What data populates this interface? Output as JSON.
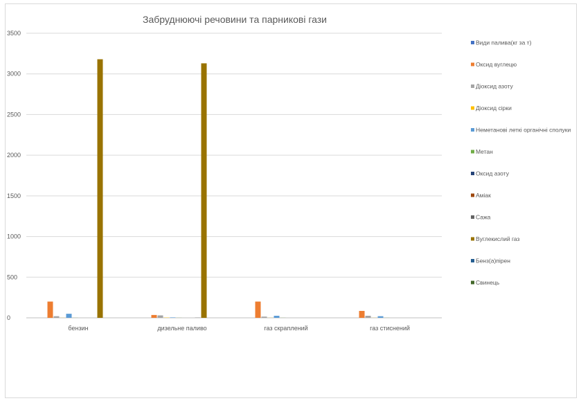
{
  "chart_data": {
    "type": "bar",
    "title": "Забруднюючі речовини та парникові гази",
    "xlabel": "",
    "ylabel": "",
    "ylim": [
      0,
      3500
    ],
    "yticks": [
      0,
      500,
      1000,
      1500,
      2000,
      2500,
      3000,
      3500
    ],
    "grid": true,
    "legend_position": "right",
    "categories": [
      "бензин",
      "дизельне паливо",
      "газ скраплений",
      "газ стиснений"
    ],
    "series": [
      {
        "name": "Види палива(кг за т)",
        "color": "#4472c4",
        "values": [
          0,
          0,
          0,
          0
        ]
      },
      {
        "name": "Оксид вуглецю",
        "color": "#ed7d31",
        "values": [
          200,
          35,
          200,
          85
        ]
      },
      {
        "name": "Діоксид азоту",
        "color": "#a5a5a5",
        "values": [
          20,
          30,
          15,
          25
        ]
      },
      {
        "name": "Діоксид сірки",
        "color": "#ffc000",
        "values": [
          1,
          3,
          1,
          1
        ]
      },
      {
        "name": "Неметанові леткі органічні сполуки",
        "color": "#5b9bd5",
        "values": [
          50,
          5,
          25,
          20
        ]
      },
      {
        "name": "Метан",
        "color": "#70ad47",
        "values": [
          1,
          1,
          1,
          1
        ]
      },
      {
        "name": "Оксид азоту",
        "color": "#264478",
        "values": [
          0,
          0,
          0,
          0
        ]
      },
      {
        "name": "Аміак",
        "color": "#9e480e",
        "values": [
          0,
          0,
          0,
          0
        ]
      },
      {
        "name": "Сажа",
        "color": "#636363",
        "values": [
          0,
          2,
          0,
          0
        ]
      },
      {
        "name": "Вуглекислий газ",
        "color": "#997300",
        "values": [
          3180,
          3130,
          0,
          0
        ]
      },
      {
        "name": "Бенз(а)пірен",
        "color": "#255e91",
        "values": [
          0,
          0,
          0,
          0
        ]
      },
      {
        "name": "Свинець",
        "color": "#43682b",
        "values": [
          0,
          0,
          0,
          0
        ]
      }
    ]
  }
}
